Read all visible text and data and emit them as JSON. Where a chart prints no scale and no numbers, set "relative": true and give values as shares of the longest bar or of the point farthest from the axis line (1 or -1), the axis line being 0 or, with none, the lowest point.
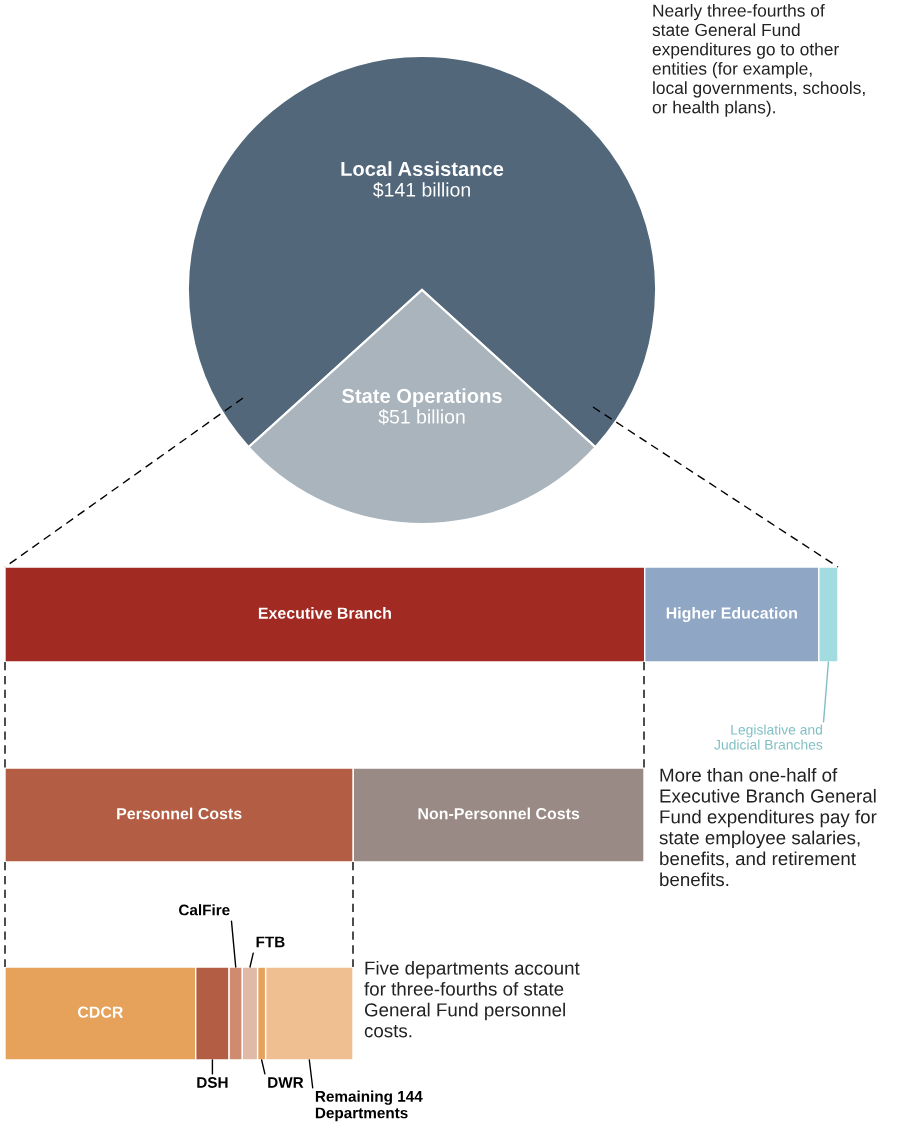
{
  "chart_data": [
    {
      "type": "pie",
      "categories": [
        "Local Assistance",
        "State Operations"
      ],
      "values": [
        141,
        51
      ],
      "colors": [
        "#52677a",
        "#a9b4bc"
      ],
      "value_labels": [
        "$141 billion",
        "$51 billion"
      ],
      "annotations": [
        "Nearly three-fourths of state General Fund expenditures go to other entities (for example, local governments, schools, or health plans)."
      ]
    },
    {
      "type": "bar",
      "orientation": "horizontal",
      "stacked": true,
      "relative": true,
      "categories": [
        null
      ],
      "series": [
        {
          "name": "Executive Branch",
          "color": "#a12a22",
          "values": [
            0.768
          ]
        },
        {
          "name": "Higher Education",
          "color": "#8fa6c4",
          "values": [
            0.209
          ]
        },
        {
          "name": "Legislative and Judicial Branches",
          "color": "#a3dce0",
          "values": [
            0.023
          ]
        }
      ]
    },
    {
      "type": "bar",
      "orientation": "horizontal",
      "stacked": true,
      "relative": true,
      "categories": [
        null
      ],
      "series": [
        {
          "name": "Personnel Costs",
          "color": "#b35d44",
          "values": [
            0.545
          ]
        },
        {
          "name": "Non-Personnel Costs",
          "color": "#9a8a85",
          "values": [
            0.455
          ]
        }
      ],
      "annotations": [
        "More than one-half of Executive Branch General Fund expenditures pay for state employee salaries, benefits, and retirement benefits."
      ]
    },
    {
      "type": "bar",
      "orientation": "horizontal",
      "stacked": true,
      "relative": true,
      "categories": [
        null
      ],
      "series": [
        {
          "name": "CDCR",
          "color": "#e6a15a",
          "values": [
            0.548
          ]
        },
        {
          "name": "DSH",
          "color": "#b35d44",
          "values": [
            0.096
          ]
        },
        {
          "name": "CalFire",
          "color": "#d08a70",
          "values": [
            0.038
          ]
        },
        {
          "name": "FTB",
          "color": "#e0b9a7",
          "values": [
            0.044
          ]
        },
        {
          "name": "DWR",
          "color": "#e6a15a",
          "values": [
            0.023
          ]
        },
        {
          "name": "Remaining 144 Departments",
          "color": "#efbf91",
          "values": [
            0.251
          ]
        }
      ],
      "annotations": [
        "Five departments account for three-fourths of state General Fund personnel costs."
      ]
    }
  ]
}
